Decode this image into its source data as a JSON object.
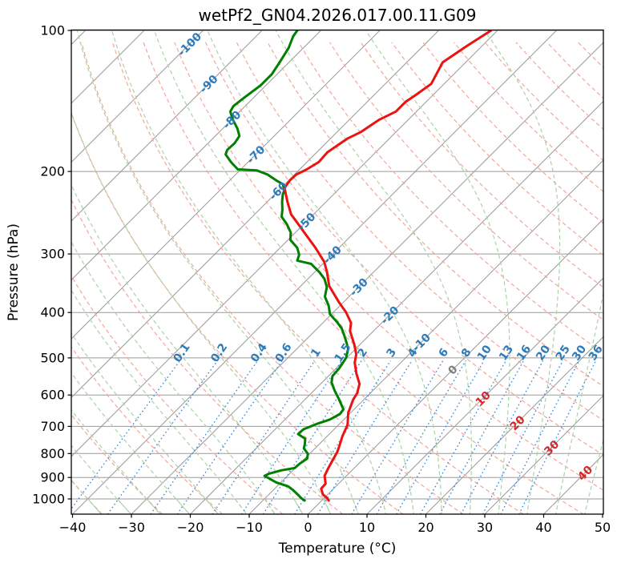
{
  "title": "wetPf2_GN04.2026.017.00.11.G09",
  "x_axis": {
    "label": "Temperature (°C)",
    "ticks": [
      -40,
      -30,
      -20,
      -10,
      0,
      10,
      20,
      30,
      40,
      50
    ],
    "tick_labels": [
      "−40",
      "−30",
      "−20",
      "−10",
      "0",
      "10",
      "20",
      "30",
      "40",
      "50"
    ],
    "min": -40,
    "max": 50
  },
  "y_axis": {
    "label": "Pressure (hPa)",
    "ticks": [
      100,
      200,
      300,
      400,
      500,
      600,
      700,
      800,
      900,
      1000
    ],
    "top": 100,
    "bottom": 1078,
    "scale": "log"
  },
  "style": {
    "temperature_color": "#ee1111",
    "dewpoint_color": "#008000",
    "isotherm_color": "#9a9a9a",
    "grid_color": "#9a9a9a",
    "dry_adiabat_color": "#f4a698",
    "moist_adiabat_color": "#aad3a5",
    "mixing_line_color": "#3e8ed8",
    "label_blue": "#2d7bba",
    "label_red": "#d62728",
    "label_gray": "#7f7f7f",
    "frame_color": "#000000"
  },
  "chart_data": {
    "type": "line",
    "subtype": "skew-t-log-p",
    "title": "wetPf2_GN04.2026.017.00.11.G09",
    "xlabel": "Temperature (°C)",
    "ylabel": "Pressure (hPa)",
    "x_range_c": [
      -40,
      50
    ],
    "p_range_hpa": [
      100,
      1078
    ],
    "skew": "45deg isotherms, log-pressure vertical",
    "series": [
      {
        "name": "temperature",
        "legend": "Temperature profile (red)",
        "points_p_T": [
          [
            100,
            -51.1
          ],
          [
            108,
            -52.6
          ],
          [
            117,
            -53.9
          ],
          [
            130,
            -52.2
          ],
          [
            137,
            -52.9
          ],
          [
            142,
            -53.5
          ],
          [
            149,
            -53.5
          ],
          [
            155,
            -54.9
          ],
          [
            165,
            -56.0
          ],
          [
            170,
            -57.1
          ],
          [
            182,
            -58.2
          ],
          [
            191,
            -58.0
          ],
          [
            198,
            -58.8
          ],
          [
            203,
            -59.7
          ],
          [
            209,
            -59.8
          ],
          [
            217,
            -59.4
          ],
          [
            226,
            -57.7
          ],
          [
            232,
            -56.6
          ],
          [
            247,
            -53.8
          ],
          [
            261,
            -50.5
          ],
          [
            270,
            -48.5
          ],
          [
            291,
            -44.0
          ],
          [
            312,
            -40.1
          ],
          [
            328,
            -37.9
          ],
          [
            351,
            -35.2
          ],
          [
            380,
            -30.8
          ],
          [
            400,
            -27.8
          ],
          [
            421,
            -25.2
          ],
          [
            438,
            -24.0
          ],
          [
            468,
            -21.0
          ],
          [
            491,
            -19.0
          ],
          [
            512,
            -17.8
          ],
          [
            541,
            -15.6
          ],
          [
            568,
            -13.4
          ],
          [
            595,
            -12.2
          ],
          [
            614,
            -11.8
          ],
          [
            655,
            -10.4
          ],
          [
            694,
            -8.5
          ],
          [
            735,
            -7.4
          ],
          [
            773,
            -6.2
          ],
          [
            794,
            -5.6
          ],
          [
            826,
            -5.0
          ],
          [
            859,
            -4.4
          ],
          [
            893,
            -3.7
          ],
          [
            928,
            -2.2
          ],
          [
            951,
            -2.1
          ],
          [
            977,
            -0.9
          ],
          [
            996,
            0.5
          ],
          [
            1008,
            1.2
          ]
        ]
      },
      {
        "name": "dewpoint",
        "legend": "Dewpoint profile (green)",
        "points_p_T": [
          [
            100,
            -84.0
          ],
          [
            103,
            -83.7
          ],
          [
            109,
            -82.5
          ],
          [
            117,
            -81.6
          ],
          [
            124,
            -80.9
          ],
          [
            131,
            -80.9
          ],
          [
            139,
            -81.6
          ],
          [
            145,
            -82.0
          ],
          [
            149,
            -81.6
          ],
          [
            155,
            -79.8
          ],
          [
            162,
            -77.5
          ],
          [
            168,
            -75.9
          ],
          [
            174,
            -75.5
          ],
          [
            180,
            -75.6
          ],
          [
            184,
            -75.1
          ],
          [
            191,
            -72.9
          ],
          [
            198,
            -70.5
          ],
          [
            199,
            -67.1
          ],
          [
            203,
            -64.6
          ],
          [
            209,
            -62.1
          ],
          [
            213,
            -60.3
          ],
          [
            219,
            -59.1
          ],
          [
            224,
            -58.6
          ],
          [
            232,
            -57.5
          ],
          [
            242,
            -56.0
          ],
          [
            250,
            -55.0
          ],
          [
            259,
            -52.9
          ],
          [
            270,
            -50.8
          ],
          [
            280,
            -49.6
          ],
          [
            291,
            -47.1
          ],
          [
            301,
            -45.6
          ],
          [
            310,
            -44.9
          ],
          [
            315,
            -42.0
          ],
          [
            328,
            -39.2
          ],
          [
            339,
            -37.2
          ],
          [
            353,
            -35.4
          ],
          [
            370,
            -34.1
          ],
          [
            387,
            -31.9
          ],
          [
            403,
            -30.3
          ],
          [
            420,
            -27.6
          ],
          [
            433,
            -25.8
          ],
          [
            447,
            -24.3
          ],
          [
            463,
            -22.7
          ],
          [
            478,
            -21.3
          ],
          [
            500,
            -20.1
          ],
          [
            526,
            -19.5
          ],
          [
            547,
            -19.3
          ],
          [
            564,
            -18.4
          ],
          [
            587,
            -16.5
          ],
          [
            610,
            -14.5
          ],
          [
            644,
            -11.8
          ],
          [
            659,
            -11.6
          ],
          [
            677,
            -12.4
          ],
          [
            691,
            -13.8
          ],
          [
            710,
            -15.2
          ],
          [
            727,
            -15.3
          ],
          [
            744,
            -13.3
          ],
          [
            765,
            -12.4
          ],
          [
            780,
            -11.9
          ],
          [
            801,
            -10.3
          ],
          [
            820,
            -9.6
          ],
          [
            840,
            -10.0
          ],
          [
            859,
            -10.1
          ],
          [
            869,
            -12.0
          ],
          [
            883,
            -13.5
          ],
          [
            893,
            -13.9
          ],
          [
            922,
            -10.8
          ],
          [
            940,
            -8.1
          ],
          [
            958,
            -6.6
          ],
          [
            977,
            -5.2
          ],
          [
            996,
            -3.9
          ],
          [
            1008,
            -2.9
          ]
        ]
      }
    ],
    "pressure_gridlines": [
      100,
      200,
      300,
      400,
      500,
      600,
      700,
      800,
      900,
      1000
    ],
    "isotherms": {
      "start_c": -140,
      "end_c": 50,
      "step_c": 10,
      "labels": [
        {
          "value": -100,
          "p": 107
        },
        {
          "value": -90,
          "p": 130
        },
        {
          "value": -80,
          "p": 155
        },
        {
          "value": -70,
          "p": 184
        },
        {
          "value": -60,
          "p": 220
        },
        {
          "value": -50,
          "p": 256
        },
        {
          "value": -40,
          "p": 301
        },
        {
          "value": -30,
          "p": 353
        },
        {
          "value": -20,
          "p": 405
        },
        {
          "value": -10,
          "p": 463
        },
        {
          "value": 0,
          "p": 530
        },
        {
          "value": 10,
          "p": 610
        },
        {
          "value": 20,
          "p": 688
        },
        {
          "value": 30,
          "p": 777
        },
        {
          "value": 40,
          "p": 880
        }
      ]
    },
    "dry_adiabats": {
      "theta_start_c": -40,
      "theta_end_c": 200,
      "step_c": 10
    },
    "moist_adiabats": {
      "t0_start_c": -60,
      "t0_end_c": 45,
      "step_c": 5
    },
    "mixing_ratio_lines": {
      "values_g_kg": [
        0.1,
        0.2,
        0.4,
        0.6,
        1,
        1.5,
        2,
        3,
        4,
        6,
        8,
        10,
        13,
        16,
        20,
        25,
        30,
        36
      ],
      "top_p": 500,
      "label_p": 487
    }
  }
}
